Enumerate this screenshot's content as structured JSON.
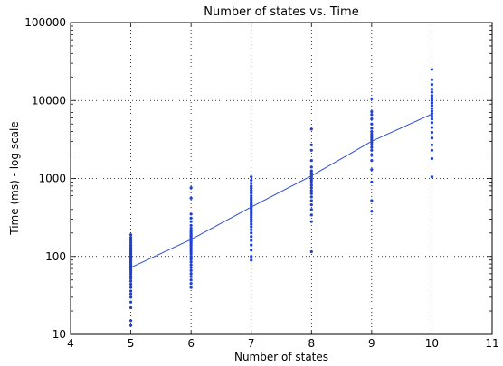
{
  "chart_data": {
    "type": "scatter",
    "title": "Number of states vs. Time",
    "xlabel": "Number of states",
    "ylabel": "Time (ms) - log scale",
    "xlim": [
      4,
      11
    ],
    "ylim": [
      10,
      100000
    ],
    "yscale": "log",
    "grid": true,
    "x_ticks": [
      "4",
      "5",
      "6",
      "7",
      "8",
      "9",
      "10",
      "11"
    ],
    "y_ticks": [
      "10",
      "100",
      "1000",
      "10000",
      "100000"
    ],
    "colors": {
      "points": "#1f3fd4",
      "line": "#2a4bd7",
      "text": "#000000"
    },
    "series": [
      {
        "kind": "scatter",
        "points": [
          {
            "x": 5,
            "y": [
              13,
              15,
              22,
              26,
              30,
              33,
              36,
              40,
              44,
              48,
              52,
              56,
              60,
              64,
              68,
              70,
              72,
              75,
              78,
              80,
              84,
              88,
              92,
              96,
              100,
              105,
              110,
              115,
              120,
              126,
              132,
              140,
              150,
              160,
              175,
              190
            ]
          },
          {
            "x": 6,
            "y": [
              40,
              45,
              50,
              55,
              60,
              66,
              72,
              78,
              85,
              92,
              100,
              108,
              115,
              122,
              130,
              138,
              145,
              152,
              158,
              164,
              170,
              178,
              186,
              195,
              205,
              215,
              230,
              250,
              280,
              310,
              350,
              560,
              760
            ]
          },
          {
            "x": 7,
            "y": [
              90,
              100,
              120,
              140,
              160,
              180,
              200,
              220,
              240,
              260,
              280,
              300,
              320,
              340,
              360,
              380,
              400,
              420,
              440,
              460,
              480,
              500,
              530,
              560,
              600,
              650,
              700,
              750,
              800,
              870,
              950,
              1050
            ]
          },
          {
            "x": 8,
            "y": [
              115,
              280,
              340,
              400,
              460,
              520,
              580,
              640,
              700,
              760,
              820,
              880,
              940,
              1000,
              1060,
              1120,
              1180,
              1250,
              1400,
              1700,
              2300,
              2700,
              4300
            ]
          },
          {
            "x": 9,
            "y": [
              380,
              520,
              900,
              1300,
              1700,
              2000,
              2300,
              2500,
              2700,
              2900,
              3100,
              3300,
              3500,
              3700,
              4000,
              4400,
              5000,
              5800,
              6600,
              7200,
              10500
            ]
          },
          {
            "x": 10,
            "y": [
              1050,
              1800,
              2300,
              2700,
              3300,
              3900,
              4500,
              5200,
              5800,
              6300,
              6800,
              7300,
              7900,
              8600,
              9300,
              10000,
              10800,
              11600,
              12800,
              14000,
              16000,
              18500,
              25000
            ]
          }
        ]
      },
      {
        "kind": "line",
        "x": [
          5,
          6,
          7,
          8,
          9,
          10
        ],
        "y": [
          72,
          165,
          430,
          1080,
          3000,
          6700
        ]
      }
    ]
  }
}
